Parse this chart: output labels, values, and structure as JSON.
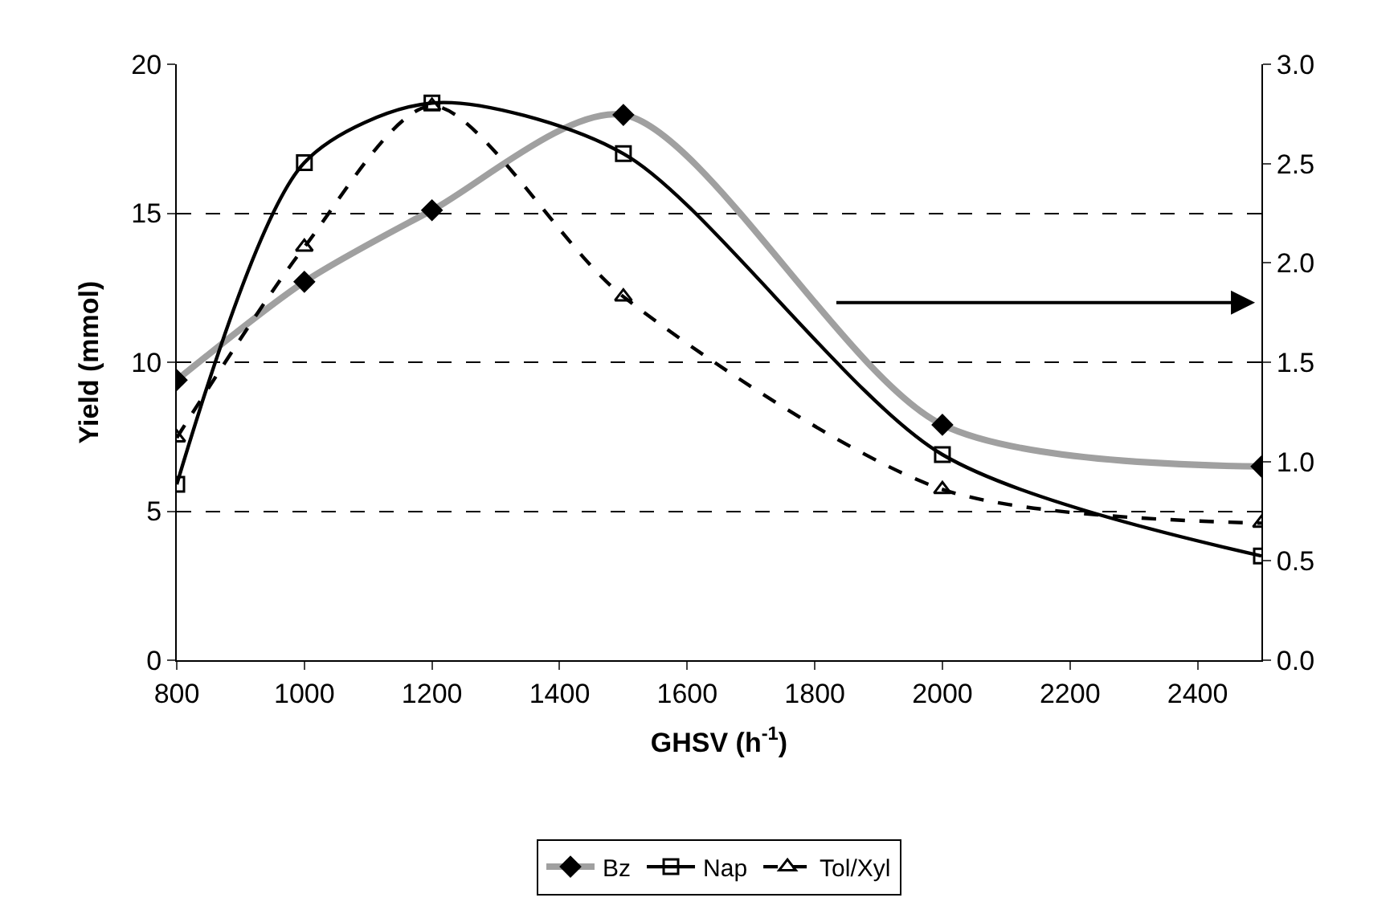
{
  "chart_data": {
    "type": "line",
    "xlabel": "GHSV (h$^{-1}$)",
    "ylabel": "Yield (mmol)",
    "x": [
      800,
      1000,
      1200,
      1500,
      2000,
      2500
    ],
    "series": [
      {
        "name": "Bz",
        "color": "#a0a0a0",
        "marker": "diamond",
        "line_style": "solid",
        "values": [
          9.4,
          12.7,
          15.1,
          18.3,
          7.9,
          6.5
        ]
      },
      {
        "name": "Nap",
        "color": "#000000",
        "marker": "square",
        "line_style": "solid",
        "values": [
          5.9,
          16.7,
          18.7,
          17.0,
          6.9,
          3.5
        ]
      },
      {
        "name": "Tol/Xyl",
        "color": "#000000",
        "marker": "triangle",
        "line_style": "dashed",
        "axis": "y2",
        "values": [
          1.12,
          2.08,
          2.79,
          1.83,
          0.86,
          0.69
        ]
      }
    ],
    "xlim": [
      800,
      2500
    ],
    "xticks": [
      800,
      1000,
      1200,
      1400,
      1600,
      1800,
      2000,
      2200,
      2400
    ],
    "ylim": [
      0,
      20
    ],
    "yticks": [
      0,
      5,
      10,
      15,
      20
    ],
    "y2lim": [
      0,
      3
    ],
    "y2ticks": [
      {
        "value": 0,
        "label": "0.0"
      },
      0.5,
      {
        "value": 1,
        "label": "1.0"
      },
      1.5,
      {
        "value": 2,
        "label": "2.0"
      },
      2.5,
      {
        "value": 3,
        "label": "3.0"
      }
    ],
    "grid": "y",
    "legend": "bottom"
  }
}
